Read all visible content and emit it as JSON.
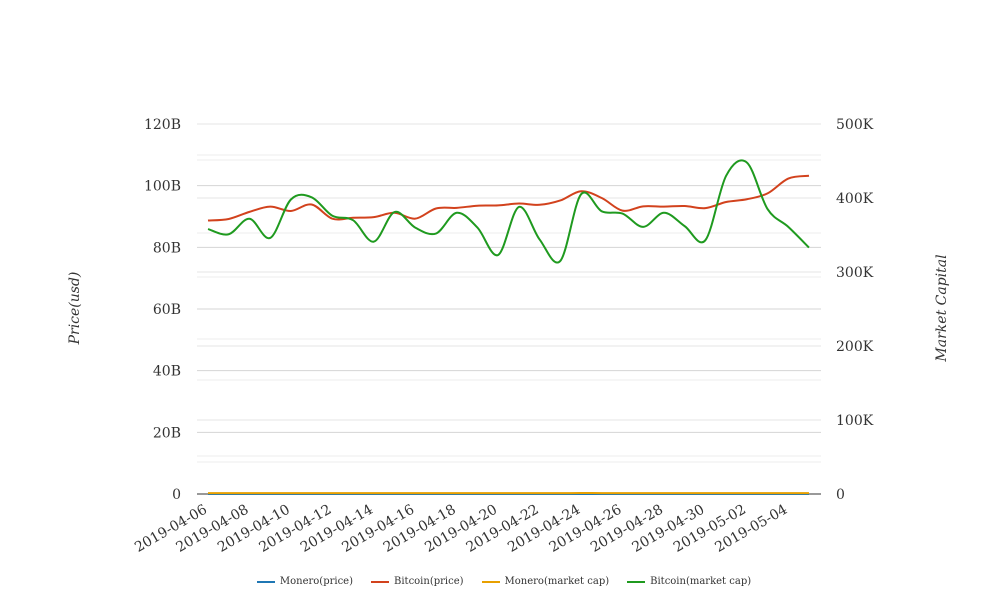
{
  "chart_data": {
    "type": "line",
    "title": "",
    "ylabel": "Price(usd)",
    "y2label": "Market Capital",
    "x": [
      "2019-04-06",
      "2019-04-07",
      "2019-04-08",
      "2019-04-09",
      "2019-04-10",
      "2019-04-11",
      "2019-04-12",
      "2019-04-13",
      "2019-04-14",
      "2019-04-15",
      "2019-04-16",
      "2019-04-17",
      "2019-04-18",
      "2019-04-19",
      "2019-04-20",
      "2019-04-21",
      "2019-04-22",
      "2019-04-23",
      "2019-04-24",
      "2019-04-25",
      "2019-04-26",
      "2019-04-27",
      "2019-04-28",
      "2019-04-29",
      "2019-04-30",
      "2019-05-01",
      "2019-05-02",
      "2019-05-03",
      "2019-05-04",
      "2019-05-05"
    ],
    "xticks": [
      "2019-04-06",
      "2019-04-08",
      "2019-04-10",
      "2019-04-12",
      "2019-04-14",
      "2019-04-16",
      "2019-04-18",
      "2019-04-20",
      "2019-04-22",
      "2019-04-24",
      "2019-04-26",
      "2019-04-28",
      "2019-04-30",
      "2019-05-02",
      "2019-05-04"
    ],
    "ylim": [
      0,
      120000000000
    ],
    "yticks": [
      "0",
      "20B",
      "40B",
      "60B",
      "80B",
      "100B",
      "120B"
    ],
    "y2lim": [
      0,
      500000
    ],
    "y2ticks": [
      "0",
      "100K",
      "200K",
      "300K",
      "400K",
      "500K"
    ],
    "grid": true,
    "legend_position": "bottom",
    "series": [
      {
        "name": "Monero(price)",
        "axis": "left",
        "color": "#1f77b4",
        "values": [
          70,
          71,
          72,
          73,
          74,
          75,
          74,
          73,
          72,
          73,
          74,
          75,
          76,
          75,
          74,
          73,
          74,
          75,
          78,
          76,
          74,
          73,
          72,
          71,
          70,
          71,
          72,
          73,
          74,
          75
        ]
      },
      {
        "name": "Bitcoin(price)",
        "axis": "left",
        "color": "#d2421d",
        "values": [
          88700000000,
          89200000000,
          91500000000,
          93200000000,
          91800000000,
          93900000000,
          89300000000,
          89600000000,
          89800000000,
          91200000000,
          89300000000,
          92600000000,
          92800000000,
          93500000000,
          93600000000,
          94200000000,
          93800000000,
          95200000000,
          98200000000,
          96000000000,
          91900000000,
          93300000000,
          93200000000,
          93400000000,
          92700000000,
          94700000000,
          95600000000,
          97500000000,
          102300000000,
          103200000000
        ]
      },
      {
        "name": "Monero(market cap)",
        "axis": "right",
        "color": "#e8a000",
        "values": [
          1200,
          1210,
          1220,
          1230,
          1240,
          1250,
          1240,
          1230,
          1220,
          1230,
          1240,
          1250,
          1260,
          1250,
          1240,
          1230,
          1240,
          1250,
          1280,
          1260,
          1240,
          1230,
          1220,
          1210,
          1200,
          1210,
          1220,
          1230,
          1240,
          1250
        ]
      },
      {
        "name": "Bitcoin(market cap)",
        "axis": "right",
        "color": "#1f9a1f",
        "values": [
          358000,
          351000,
          372000,
          346000,
          398000,
          401000,
          376000,
          370000,
          341000,
          381000,
          360000,
          352000,
          380000,
          360000,
          323000,
          388000,
          344000,
          315000,
          405000,
          382000,
          379000,
          361000,
          380000,
          362000,
          343000,
          430000,
          448000,
          385000,
          361000,
          333000
        ]
      }
    ]
  }
}
